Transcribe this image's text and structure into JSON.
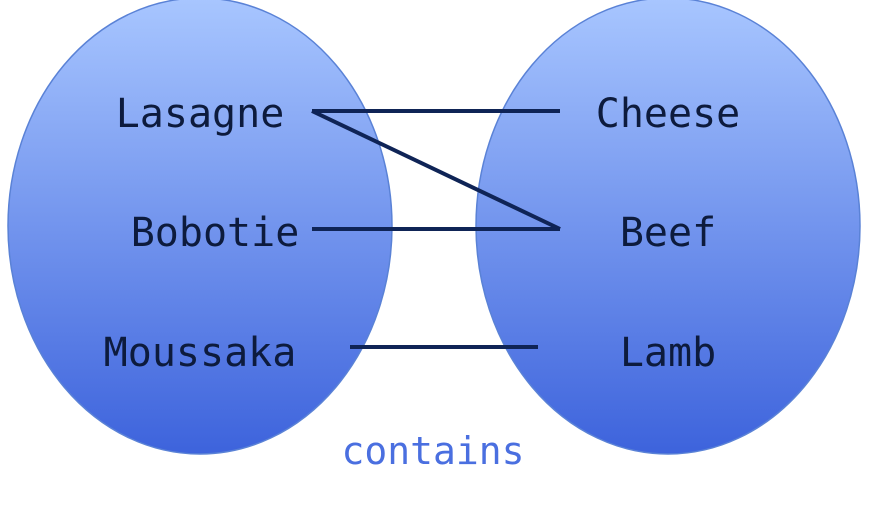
{
  "diagram": {
    "domain_set": {
      "items": [
        {
          "label": "Lasagne"
        },
        {
          "label": "Bobotie"
        },
        {
          "label": "Moussaka"
        }
      ]
    },
    "codomain_set": {
      "items": [
        {
          "label": "Cheese"
        },
        {
          "label": "Beef"
        },
        {
          "label": "Lamb"
        }
      ]
    },
    "relation_label": "contains",
    "mappings": [
      {
        "from": "Lasagne",
        "to": "Cheese"
      },
      {
        "from": "Lasagne",
        "to": "Beef"
      },
      {
        "from": "Bobotie",
        "to": "Beef"
      },
      {
        "from": "Moussaka",
        "to": "Lamb"
      }
    ],
    "colors": {
      "ellipse_top": "#a8c6ff",
      "ellipse_bottom": "#3d63dc",
      "ellipse_stroke": "#5a82d6",
      "edge": "#0f2456",
      "text": "#0d1b3d",
      "relation_text": "#4a6fe0"
    }
  }
}
